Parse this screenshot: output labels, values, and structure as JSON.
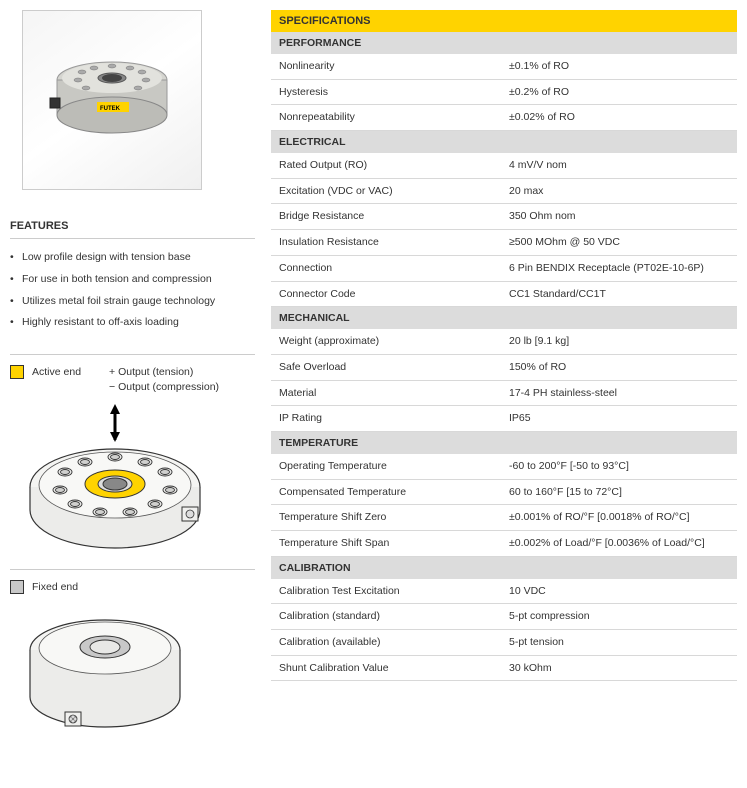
{
  "features": {
    "heading": "FEATURES",
    "items": [
      "Low profile design with tension base",
      "For use in both tension and compression",
      "Utilizes metal foil strain gauge technology",
      "Highly resistant to off-axis loading"
    ]
  },
  "legend": {
    "active_end": "Active end",
    "output_tension": "+ Output (tension)",
    "output_compression": "− Output (compression)",
    "fixed_end": "Fixed end"
  },
  "spec_title": "SPECIFICATIONS",
  "sections": [
    {
      "title": "PERFORMANCE",
      "rows": [
        {
          "label": "Nonlinearity",
          "value": "±0.1% of RO"
        },
        {
          "label": "Hysteresis",
          "value": "±0.2% of RO"
        },
        {
          "label": "Nonrepeatability",
          "value": "±0.02% of RO"
        }
      ]
    },
    {
      "title": "ELECTRICAL",
      "rows": [
        {
          "label": "Rated Output (RO)",
          "value": "4 mV/V nom"
        },
        {
          "label": "Excitation (VDC or VAC)",
          "value": "20 max"
        },
        {
          "label": "Bridge Resistance",
          "value": "350 Ohm nom"
        },
        {
          "label": "Insulation Resistance",
          "value": "≥500 MOhm @ 50 VDC"
        },
        {
          "label": "Connection",
          "value": "6 Pin BENDIX Receptacle (PT02E-10-6P)"
        },
        {
          "label": "Connector Code",
          "value": "CC1 Standard/CC1T"
        }
      ]
    },
    {
      "title": "MECHANICAL",
      "rows": [
        {
          "label": "Weight (approximate)",
          "value": "20 lb [9.1 kg]"
        },
        {
          "label": "Safe Overload",
          "value": "150% of RO"
        },
        {
          "label": "Material",
          "value": "17-4 PH stainless-steel"
        },
        {
          "label": "IP Rating",
          "value": "IP65"
        }
      ]
    },
    {
      "title": "TEMPERATURE",
      "rows": [
        {
          "label": "Operating Temperature",
          "value": "-60 to 200°F [-50 to 93°C]"
        },
        {
          "label": "Compensated Temperature",
          "value": "60 to 160°F [15 to 72°C]"
        },
        {
          "label": "Temperature Shift Zero",
          "value": "±0.001% of RO/°F [0.0018% of RO/°C]"
        },
        {
          "label": "Temperature Shift Span",
          "value": "±0.002% of Load/°F [0.0036% of Load/°C]"
        }
      ]
    },
    {
      "title": "CALIBRATION",
      "rows": [
        {
          "label": "Calibration Test Excitation",
          "value": "10 VDC"
        },
        {
          "label": "Calibration (standard)",
          "value": "5-pt compression"
        },
        {
          "label": "Calibration (available)",
          "value": "5-pt tension"
        },
        {
          "label": "Shunt Calibration Value",
          "value": "30 kOhm"
        }
      ]
    }
  ],
  "colors": {
    "accent": "#ffd300",
    "section_bg": "#dcdcdc",
    "border": "#d8d8d8"
  }
}
